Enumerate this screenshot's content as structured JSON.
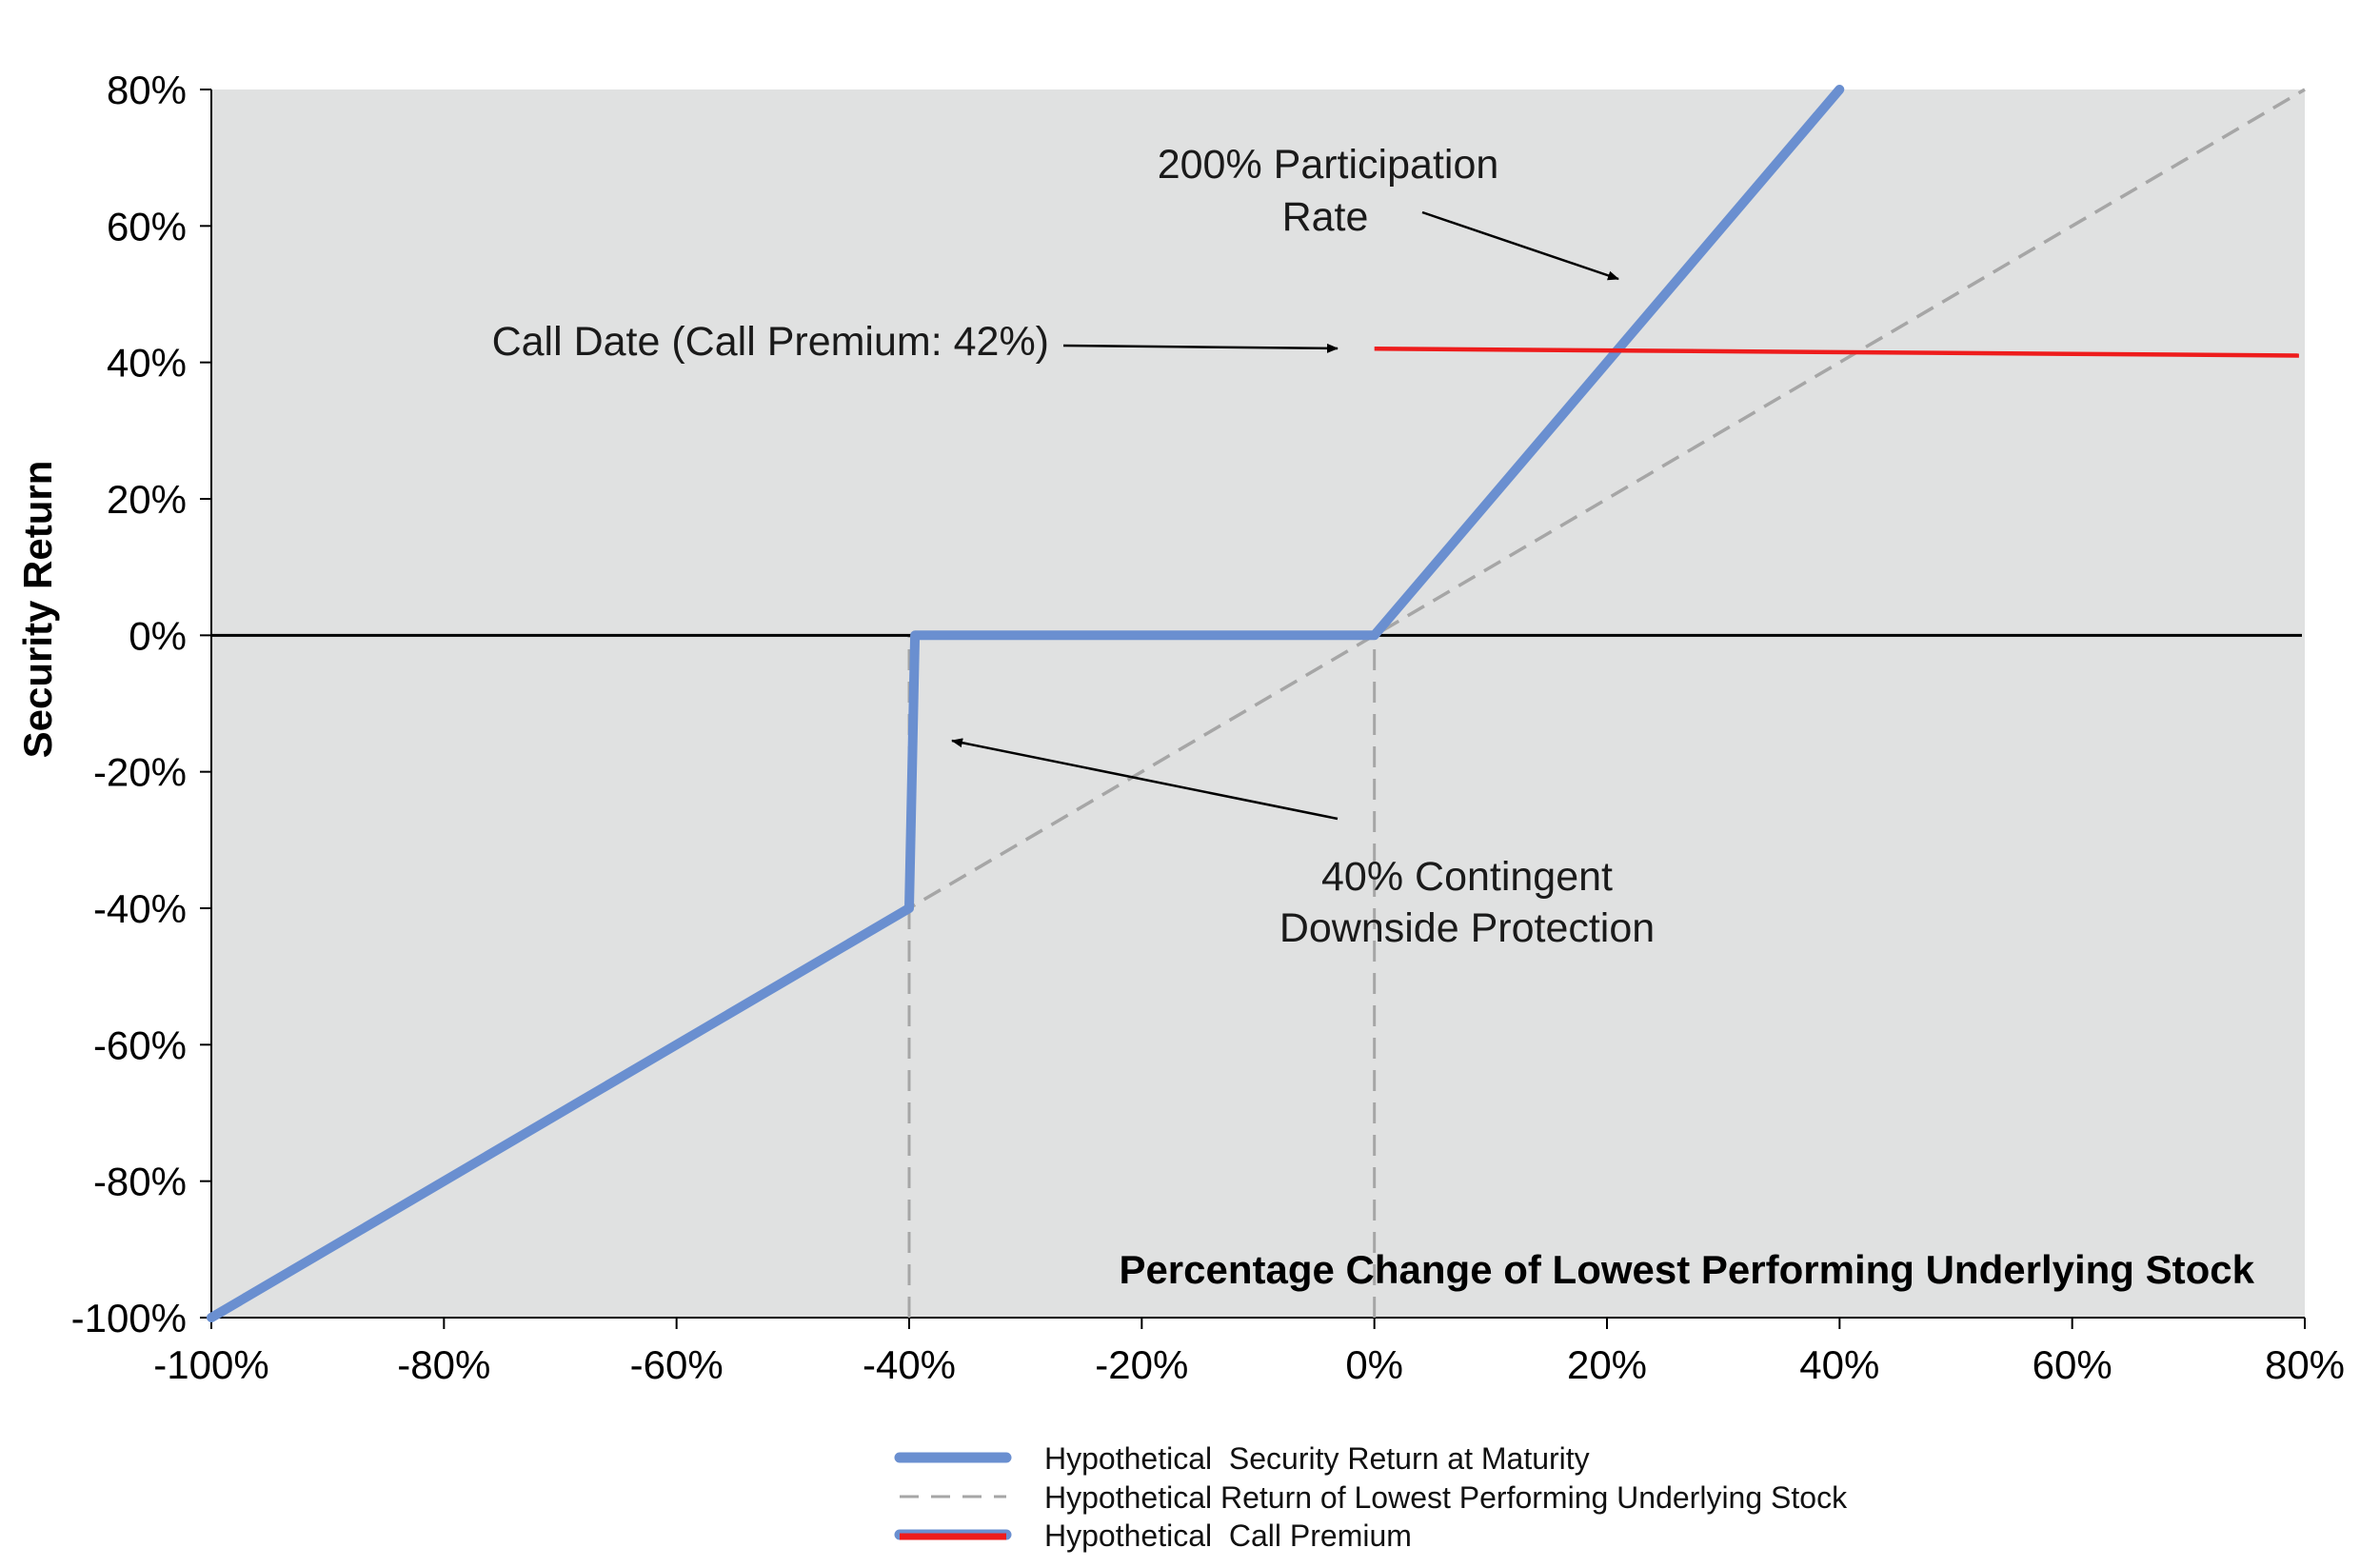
{
  "chart_data": {
    "type": "line",
    "title": "",
    "xlabel": "Percentage Change of Lowest Performing Underlying Stock",
    "ylabel": "Security Return",
    "xlim": [
      -100,
      80
    ],
    "ylim": [
      -100,
      80
    ],
    "x_ticks": [
      -100,
      -80,
      -60,
      -40,
      -20,
      0,
      20,
      40,
      60,
      80
    ],
    "y_ticks": [
      -100,
      -80,
      -60,
      -40,
      -20,
      0,
      20,
      40,
      60,
      80
    ],
    "x_tick_labels": [
      "-100%",
      "-80%",
      "-60%",
      "-40%",
      "-20%",
      "0%",
      "20%",
      "40%",
      "60%",
      "80%"
    ],
    "y_tick_labels": [
      "-100%",
      "-80%",
      "-60%",
      "-40%",
      "-20%",
      "0%",
      "20%",
      "40%",
      "60%",
      "80%"
    ],
    "grid": false,
    "plot_background": "#e0e1e1",
    "reference_lines": {
      "horizontal_zero": {
        "y": 0,
        "color": "#000000"
      },
      "vertical_dashed": [
        {
          "x": -40,
          "y_from": -100,
          "y_to": 0
        },
        {
          "x": 0,
          "y_from": -100,
          "y_to": 0
        }
      ]
    },
    "series": [
      {
        "name": "Hypothetical  Security Return at Maturity",
        "color": "#6a8fd0",
        "style": "thick-solid",
        "points": [
          [
            -100,
            -100
          ],
          [
            -40,
            -40
          ],
          [
            -39.5,
            0
          ],
          [
            0,
            0
          ],
          [
            40,
            80
          ]
        ]
      },
      {
        "name": "Hypothetical Return of Lowest Performing Underlying Stock",
        "color": "#a6a6a6",
        "style": "dashed",
        "points": [
          [
            -100,
            -100
          ],
          [
            80,
            80
          ]
        ]
      },
      {
        "name": "Hypothetical  Call Premium",
        "color": "#ee1c1c",
        "style": "solid",
        "points": [
          [
            0,
            42
          ],
          [
            79.5,
            41
          ]
        ]
      }
    ],
    "annotations": [
      {
        "lines": [
          "200% Participation",
          "Rate"
        ],
        "arrow_to": [
          21,
          52
        ]
      },
      {
        "lines": [
          "Call Date (Call Premium: 42%)"
        ],
        "arrow_to": [
          -3,
          42
        ]
      },
      {
        "lines": [
          "40% Contingent",
          "Downside Protection"
        ],
        "arrow_to": [
          -36.5,
          -15.5
        ]
      }
    ],
    "legend": {
      "position": "bottom-center"
    }
  }
}
